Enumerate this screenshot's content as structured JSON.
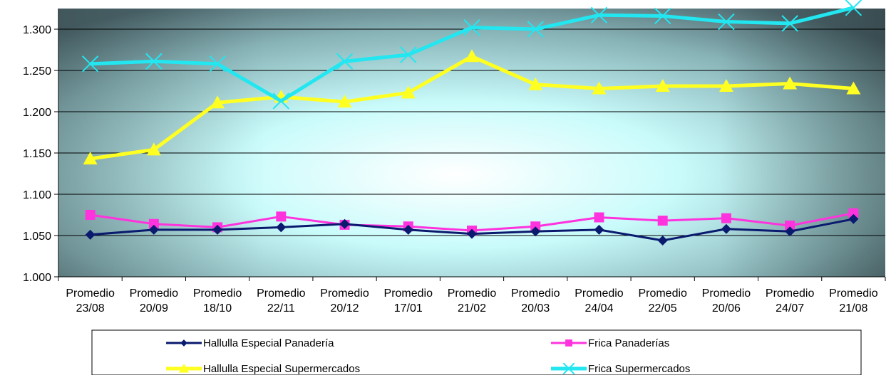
{
  "chart_data": {
    "type": "line",
    "title": "",
    "xlabel": "",
    "ylabel": "",
    "ylim": [
      1.0,
      1.325
    ],
    "yticks": [
      "1.000",
      "1.050",
      "1.100",
      "1.150",
      "1.200",
      "1.250",
      "1.300"
    ],
    "grid": "horizontal",
    "legend_position": "bottom",
    "categories": [
      [
        "Promedio",
        "23/08"
      ],
      [
        "Promedio",
        "20/09"
      ],
      [
        "Promedio",
        "18/10"
      ],
      [
        "Promedio",
        "22/11"
      ],
      [
        "Promedio",
        "20/12"
      ],
      [
        "Promedio",
        "17/01"
      ],
      [
        "Promedio",
        "21/02"
      ],
      [
        "Promedio",
        "20/03"
      ],
      [
        "Promedio",
        "24/04"
      ],
      [
        "Promedio",
        "22/05"
      ],
      [
        "Promedio",
        "20/06"
      ],
      [
        "Promedio",
        "24/07"
      ],
      [
        "Promedio",
        "21/08"
      ]
    ],
    "series": [
      {
        "name": "Hallulla Especial Panadería",
        "color": "#0a1a6e",
        "marker": "diamond",
        "values": [
          1.051,
          1.057,
          1.057,
          1.06,
          1.064,
          1.057,
          1.052,
          1.055,
          1.057,
          1.044,
          1.058,
          1.055,
          1.07
        ]
      },
      {
        "name": "Frica Panaderías",
        "color": "#ff33dd",
        "marker": "square",
        "values": [
          1.075,
          1.064,
          1.06,
          1.073,
          1.063,
          1.061,
          1.056,
          1.061,
          1.072,
          1.068,
          1.071,
          1.062,
          1.077
        ]
      },
      {
        "name": "Hallulla Especial Supermercados",
        "color": "#ffff22",
        "marker": "triangle",
        "values": [
          1.143,
          1.154,
          1.211,
          1.218,
          1.212,
          1.223,
          1.267,
          1.233,
          1.228,
          1.231,
          1.231,
          1.234,
          1.228
        ]
      },
      {
        "name": "Frica Supermercados",
        "color": "#22e6f0",
        "marker": "x",
        "values": [
          1.258,
          1.261,
          1.258,
          1.213,
          1.261,
          1.269,
          1.302,
          1.3,
          1.317,
          1.316,
          1.309,
          1.307,
          1.326
        ]
      }
    ]
  }
}
